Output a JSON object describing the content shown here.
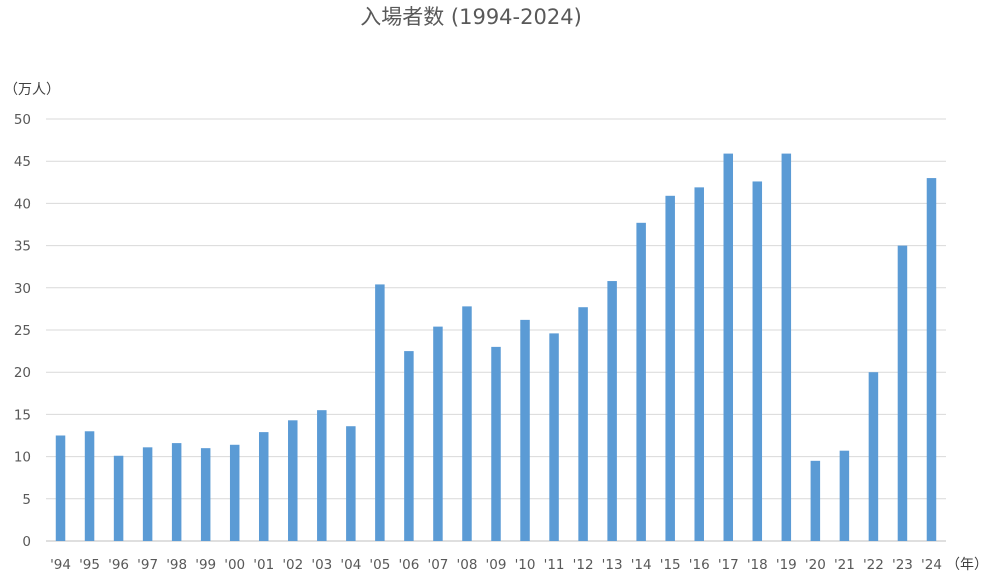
{
  "chart_data": {
    "type": "bar",
    "title": "入場者数 (1994-2024)",
    "ylabel": "（万人）",
    "xlabel": "（年）",
    "ylim": [
      0,
      50
    ],
    "yticks": [
      0,
      5,
      10,
      15,
      20,
      25,
      30,
      35,
      40,
      45,
      50
    ],
    "grid": true,
    "bar_color": "#5b9bd5",
    "categories": [
      "'94",
      "'95",
      "'96",
      "'97",
      "'98",
      "'99",
      "'00",
      "'01",
      "'02",
      "'03",
      "'04",
      "'05",
      "'06",
      "'07",
      "'08",
      "'09",
      "'10",
      "'11",
      "'12",
      "'13",
      "'14",
      "'15",
      "'16",
      "'17",
      "'18",
      "'19",
      "'20",
      "'21",
      "'22",
      "'23",
      "'24"
    ],
    "values": [
      12.5,
      13.0,
      10.1,
      11.1,
      11.6,
      11.0,
      11.4,
      12.9,
      14.3,
      15.5,
      13.6,
      30.4,
      22.5,
      25.4,
      27.8,
      23.0,
      26.2,
      24.6,
      27.7,
      30.8,
      37.7,
      40.9,
      41.9,
      45.9,
      42.6,
      45.9,
      9.5,
      10.7,
      20.0,
      35.0,
      43.0
    ]
  }
}
